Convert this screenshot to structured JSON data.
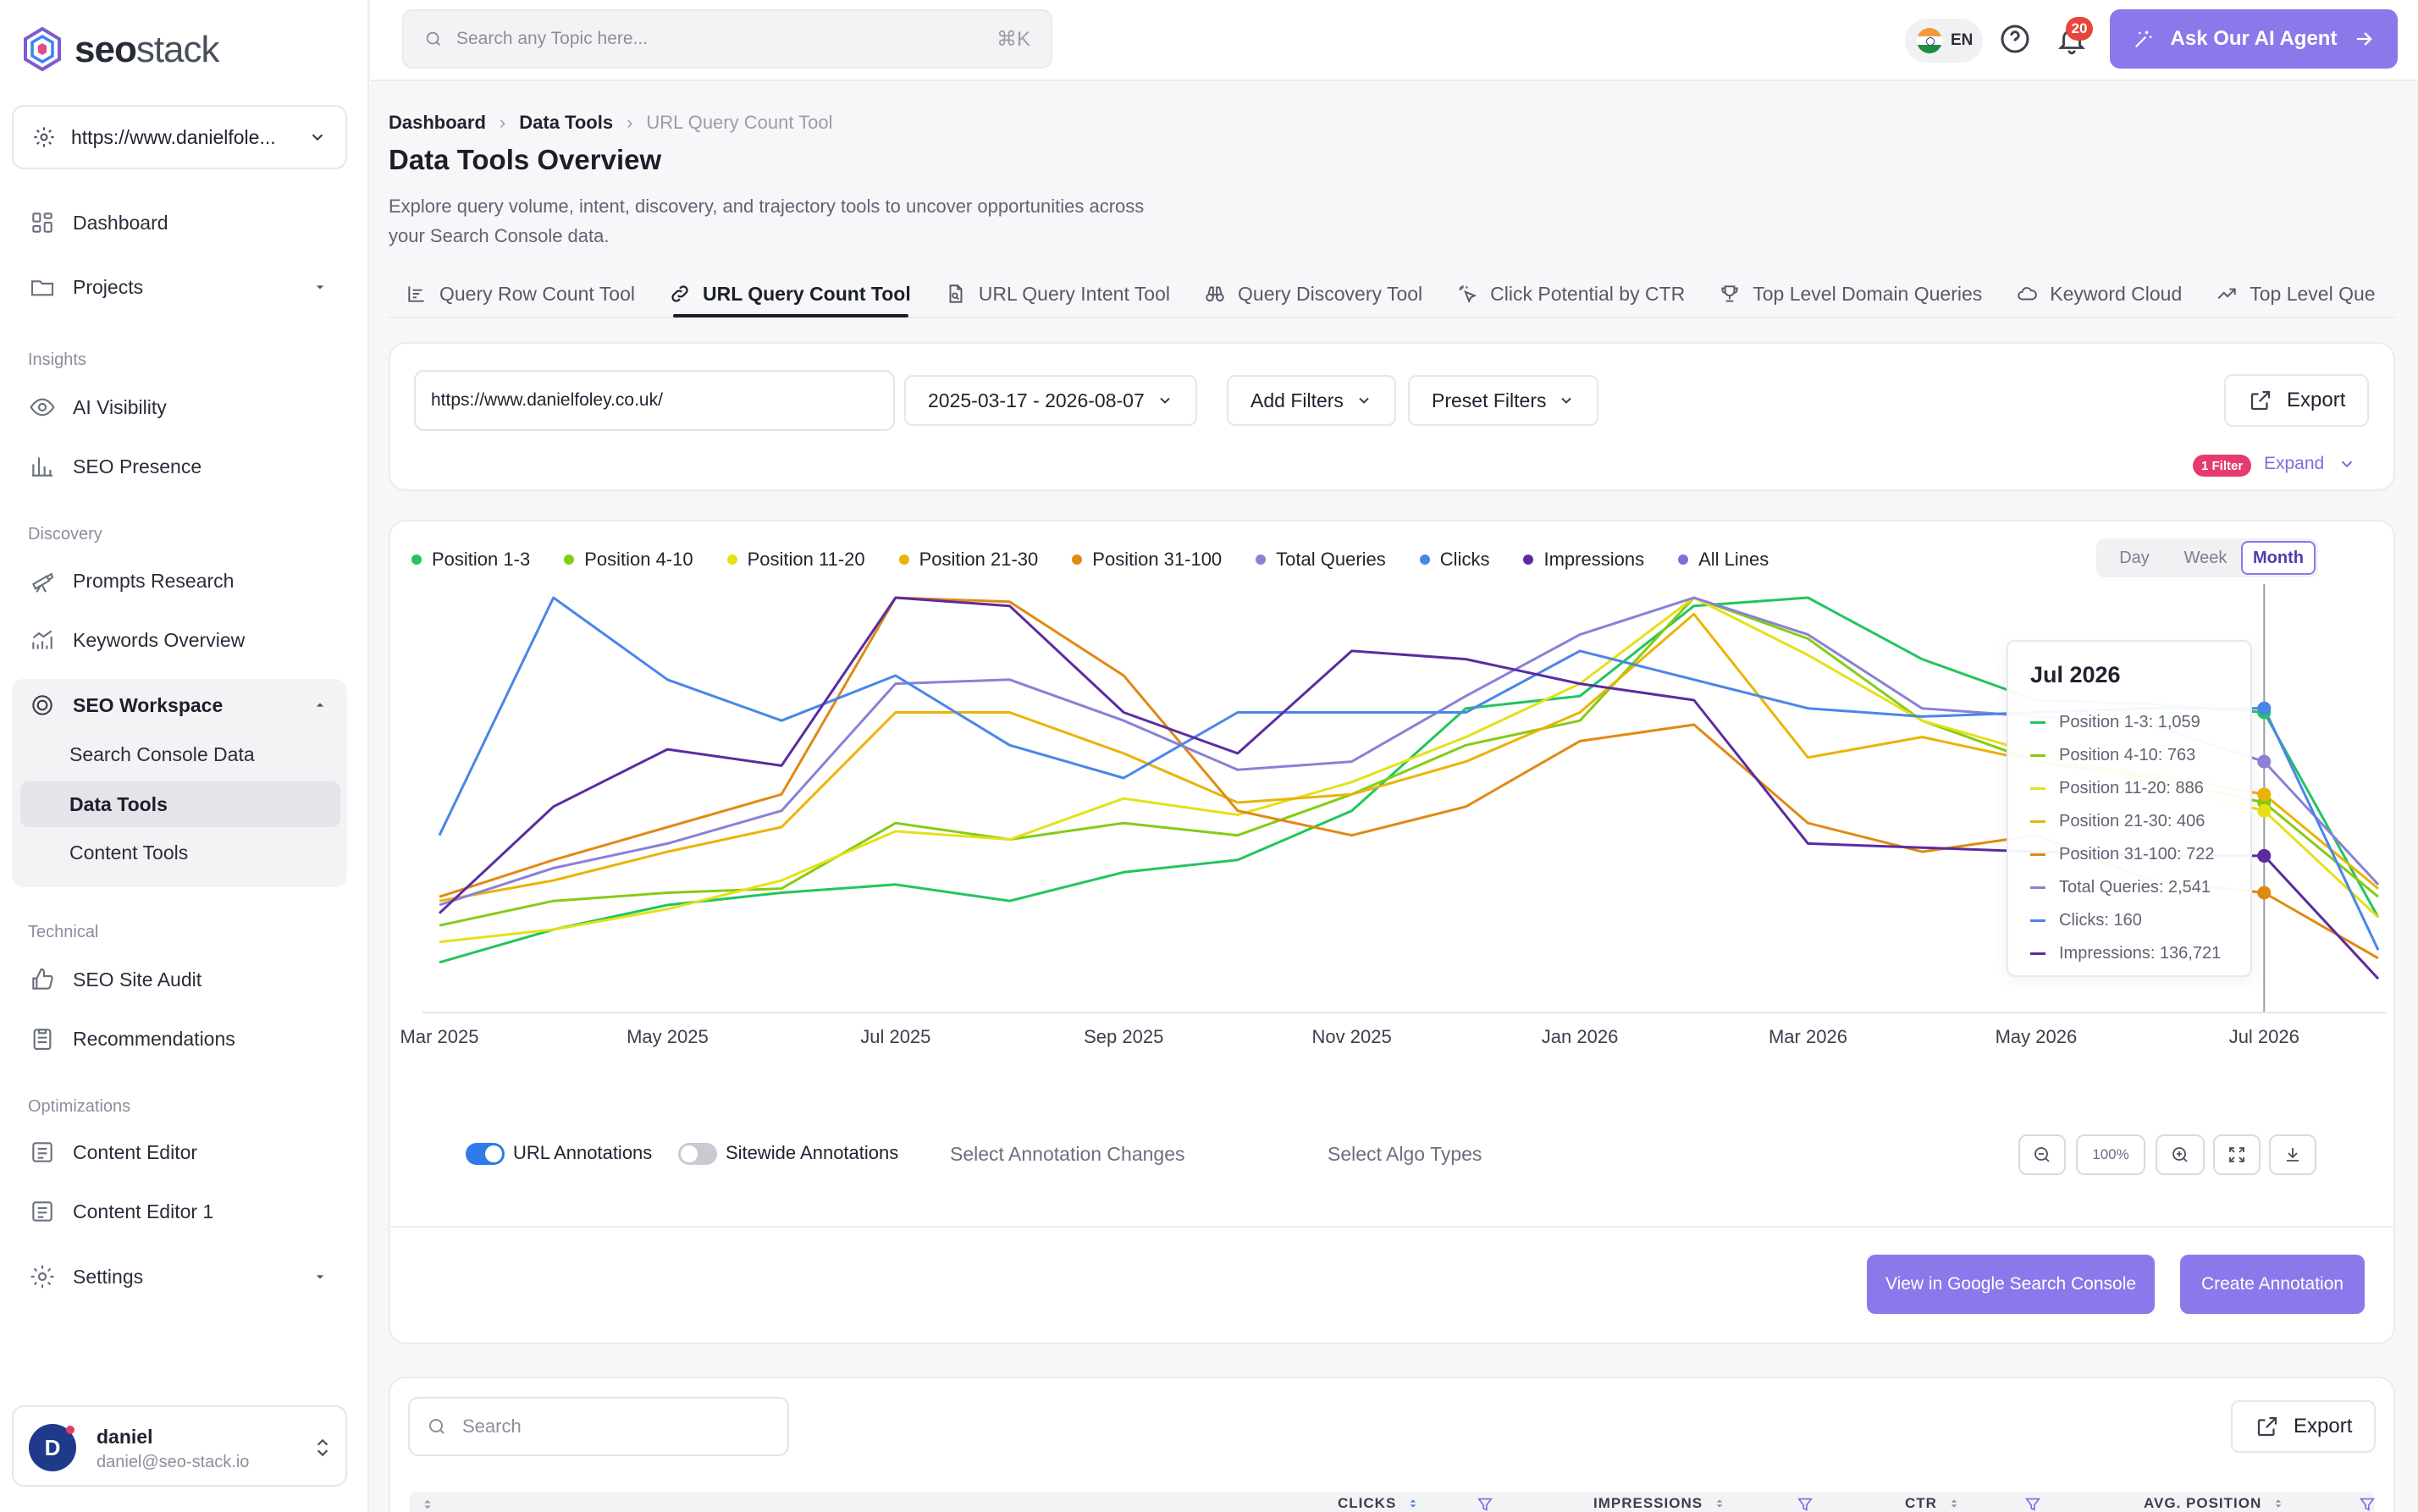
{
  "brand": {
    "logo_text_bold": "seo",
    "logo_text_light": "stack"
  },
  "site_selector": {
    "value": "https://www.danielfole..."
  },
  "sidebar": {
    "main": [
      {
        "label": "Dashboard",
        "icon": "grid-icon"
      },
      {
        "label": "Projects",
        "icon": "folder-icon"
      }
    ],
    "sections": {
      "insights": "Insights",
      "discovery": "Discovery",
      "technical": "Technical",
      "optimizations": "Optimizations"
    },
    "insights": [
      {
        "label": "AI Visibility",
        "icon": "eye-icon"
      },
      {
        "label": "SEO Presence",
        "icon": "bar-chart-icon"
      }
    ],
    "discovery": [
      {
        "label": "Prompts Research",
        "icon": "telescope-icon"
      },
      {
        "label": "Keywords Overview",
        "icon": "trend-chart-icon"
      }
    ],
    "workspace": {
      "label": "SEO Workspace",
      "items": [
        "Search Console Data",
        "Data Tools",
        "Content Tools"
      ],
      "active": "Data Tools"
    },
    "technical": [
      {
        "label": "SEO Site Audit",
        "icon": "thumbs-up-icon"
      },
      {
        "label": "Recommendations",
        "icon": "clipboard-icon"
      }
    ],
    "optimizations": [
      {
        "label": "Content Editor",
        "icon": "editor-icon"
      },
      {
        "label": "Content Editor 1",
        "icon": "editor-icon"
      }
    ],
    "settings": "Settings"
  },
  "user": {
    "initial": "D",
    "name": "daniel",
    "email": "daniel@seo-stack.io"
  },
  "topbar": {
    "search_placeholder": "Search any Topic here...",
    "shortcut": "⌘K",
    "lang": "EN",
    "notifications": "20",
    "agent_button": "Ask Our AI Agent"
  },
  "breadcrumb": [
    "Dashboard",
    "Data Tools",
    "URL Query Count Tool"
  ],
  "page": {
    "title": "Data Tools Overview",
    "description": "Explore query volume, intent, discovery, and trajectory tools to uncover opportunities across your Search Console data."
  },
  "tabs": [
    {
      "label": "Query Row Count Tool",
      "icon": "bar-list-icon"
    },
    {
      "label": "URL Query Count Tool",
      "icon": "link-icon",
      "active": true
    },
    {
      "label": "URL Query Intent Tool",
      "icon": "file-search-icon"
    },
    {
      "label": "Query Discovery Tool",
      "icon": "binoculars-icon"
    },
    {
      "label": "Click Potential by CTR",
      "icon": "sparkle-cursor-icon"
    },
    {
      "label": "Top Level Domain Queries",
      "icon": "trophy-icon"
    },
    {
      "label": "Keyword Cloud",
      "icon": "cloud-icon"
    },
    {
      "label": "Top Level Que",
      "icon": "trend-up-icon"
    }
  ],
  "filters": {
    "url": "https://www.danielfoley.co.uk/",
    "date_range": "2025-03-17 - 2026-08-07",
    "add_filters": "Add Filters",
    "preset_filters": "Preset Filters",
    "export": "Export",
    "badge": "1 Filter",
    "expand": "Expand"
  },
  "chart_controls": {
    "periods": [
      "Day",
      "Week",
      "Month"
    ],
    "active": "Month"
  },
  "chart_data": {
    "type": "line",
    "x": [
      "Mar 2025",
      "Apr 2025",
      "May 2025",
      "Jun 2025",
      "Jul 2025",
      "Aug 2025",
      "Sep 2025",
      "Oct 2025",
      "Nov 2025",
      "Dec 2025",
      "Jan 2026",
      "Feb 2026",
      "Mar 2026",
      "Apr 2026",
      "May 2026",
      "Jun 2026",
      "Jul 2026",
      "Aug 2026"
    ],
    "x_tick_labels": [
      "Mar 2025",
      "May 2025",
      "Jul 2025",
      "Sep 2025",
      "Nov 2025",
      "Jan 2026",
      "Mar 2026",
      "May 2026",
      "Jul 2026"
    ],
    "ylim": [
      0,
      1
    ],
    "legend_position": "top-left",
    "grid": false,
    "series": [
      {
        "name": "Position 1-3",
        "color": "#22c55e",
        "values": [
          0.11,
          0.19,
          0.25,
          0.28,
          0.3,
          0.26,
          0.33,
          0.36,
          0.48,
          0.73,
          0.76,
          0.98,
          1.0,
          0.85,
          0.75,
          0.74,
          0.72,
          0.22
        ]
      },
      {
        "name": "Position 4-10",
        "color": "#84cc16",
        "values": [
          0.2,
          0.26,
          0.28,
          0.29,
          0.45,
          0.41,
          0.45,
          0.42,
          0.52,
          0.64,
          0.7,
          1.0,
          0.9,
          0.7,
          0.6,
          0.56,
          0.5,
          0.27
        ]
      },
      {
        "name": "Position 11-20",
        "color": "#e5e01a",
        "values": [
          0.16,
          0.19,
          0.24,
          0.31,
          0.43,
          0.41,
          0.51,
          0.47,
          0.55,
          0.66,
          0.79,
          1.0,
          0.86,
          0.7,
          0.62,
          0.55,
          0.48,
          0.22
        ]
      },
      {
        "name": "Position 21-30",
        "color": "#eab308",
        "values": [
          0.26,
          0.31,
          0.38,
          0.44,
          0.72,
          0.72,
          0.62,
          0.5,
          0.52,
          0.6,
          0.72,
          0.96,
          0.61,
          0.66,
          0.6,
          0.57,
          0.52,
          0.29
        ]
      },
      {
        "name": "Position 31-100",
        "color": "#e08a12",
        "values": [
          0.27,
          0.36,
          0.44,
          0.52,
          1.0,
          0.99,
          0.81,
          0.48,
          0.42,
          0.49,
          0.65,
          0.69,
          0.45,
          0.38,
          0.42,
          0.31,
          0.28,
          0.12
        ]
      },
      {
        "name": "Total Queries",
        "color": "#8b80d6",
        "values": [
          0.25,
          0.34,
          0.4,
          0.48,
          0.79,
          0.8,
          0.7,
          0.58,
          0.6,
          0.76,
          0.91,
          1.0,
          0.91,
          0.73,
          0.71,
          0.69,
          0.6,
          0.3
        ]
      },
      {
        "name": "Clicks",
        "color": "#4a86e8",
        "values": [
          0.42,
          1.0,
          0.8,
          0.7,
          0.81,
          0.64,
          0.56,
          0.72,
          0.72,
          0.72,
          0.87,
          0.8,
          0.73,
          0.71,
          0.72,
          0.73,
          0.73,
          0.14
        ]
      },
      {
        "name": "Impressions",
        "color": "#5b2ca0",
        "values": [
          0.23,
          0.49,
          0.63,
          0.59,
          1.0,
          0.98,
          0.72,
          0.62,
          0.87,
          0.85,
          0.79,
          0.75,
          0.4,
          0.39,
          0.38,
          0.37,
          0.37,
          0.07
        ]
      }
    ],
    "legend_extra": {
      "name": "All Lines",
      "color": "#7c6fd8"
    },
    "hover_index": 16,
    "tooltip": {
      "title": "Jul 2026",
      "rows": [
        "Position 1-3: 1,059",
        "Position 4-10: 763",
        "Position 11-20: 886",
        "Position 21-30: 406",
        "Position 31-100: 722",
        "Total Queries: 2,541",
        "Clicks: 160",
        "Impressions: 136,721"
      ]
    }
  },
  "annotations": {
    "url_label": "URL Annotations",
    "url_on": true,
    "sitewide_label": "Sitewide Annotations",
    "sitewide_on": false,
    "select_changes": "Select Annotation Changes",
    "select_algo": "Select Algo Types",
    "zoom_level": "100%"
  },
  "actions": {
    "view_gsc": "View in Google Search Console",
    "create_annotation": "Create Annotation"
  },
  "table": {
    "search_placeholder": "Search",
    "export": "Export",
    "columns": [
      "CLICKS",
      "IMPRESSIONS",
      "CTR",
      "AVG. POSITION"
    ]
  }
}
